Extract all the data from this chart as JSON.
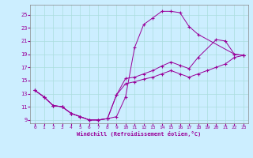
{
  "xlabel": "Windchill (Refroidissement éolien,°C)",
  "bg_color": "#cceeff",
  "line_color": "#990099",
  "grid_color": "#aadddd",
  "xlim": [
    -0.5,
    23.5
  ],
  "ylim": [
    8.5,
    26.5
  ],
  "xticks": [
    0,
    1,
    2,
    3,
    4,
    5,
    6,
    7,
    8,
    9,
    10,
    11,
    12,
    13,
    14,
    15,
    16,
    17,
    18,
    19,
    20,
    21,
    22,
    23
  ],
  "yticks": [
    9,
    11,
    13,
    15,
    17,
    19,
    21,
    23,
    25
  ],
  "line1_x": [
    0,
    1,
    2,
    3,
    4,
    5,
    6,
    7,
    8,
    9,
    10,
    11,
    12,
    13,
    14,
    15,
    16,
    17,
    18,
    22,
    23
  ],
  "line1_y": [
    13.5,
    12.5,
    11.2,
    11.0,
    10.0,
    9.5,
    9.0,
    9.0,
    9.2,
    9.5,
    12.5,
    20.0,
    23.5,
    24.5,
    25.5,
    25.5,
    25.3,
    23.2,
    22.0,
    19.0,
    18.8
  ],
  "line2_x": [
    0,
    1,
    2,
    3,
    4,
    5,
    6,
    7,
    8,
    9,
    10,
    11,
    12,
    13,
    14,
    15,
    16,
    17,
    18,
    20,
    21,
    22,
    23
  ],
  "line2_y": [
    13.5,
    12.5,
    11.2,
    11.0,
    10.0,
    9.5,
    9.0,
    9.0,
    9.2,
    12.8,
    15.3,
    15.5,
    16.0,
    16.5,
    17.2,
    17.8,
    17.3,
    16.8,
    18.5,
    21.2,
    21.0,
    19.0,
    18.8
  ],
  "line3_x": [
    0,
    1,
    2,
    3,
    4,
    5,
    6,
    7,
    8,
    9,
    10,
    11,
    12,
    13,
    14,
    15,
    16,
    17,
    18,
    19,
    20,
    21,
    22,
    23
  ],
  "line3_y": [
    13.5,
    12.5,
    11.2,
    11.0,
    10.0,
    9.5,
    9.0,
    9.0,
    9.2,
    12.8,
    14.5,
    14.8,
    15.2,
    15.5,
    16.0,
    16.5,
    16.0,
    15.5,
    16.0,
    16.5,
    17.0,
    17.5,
    18.5,
    18.8
  ]
}
